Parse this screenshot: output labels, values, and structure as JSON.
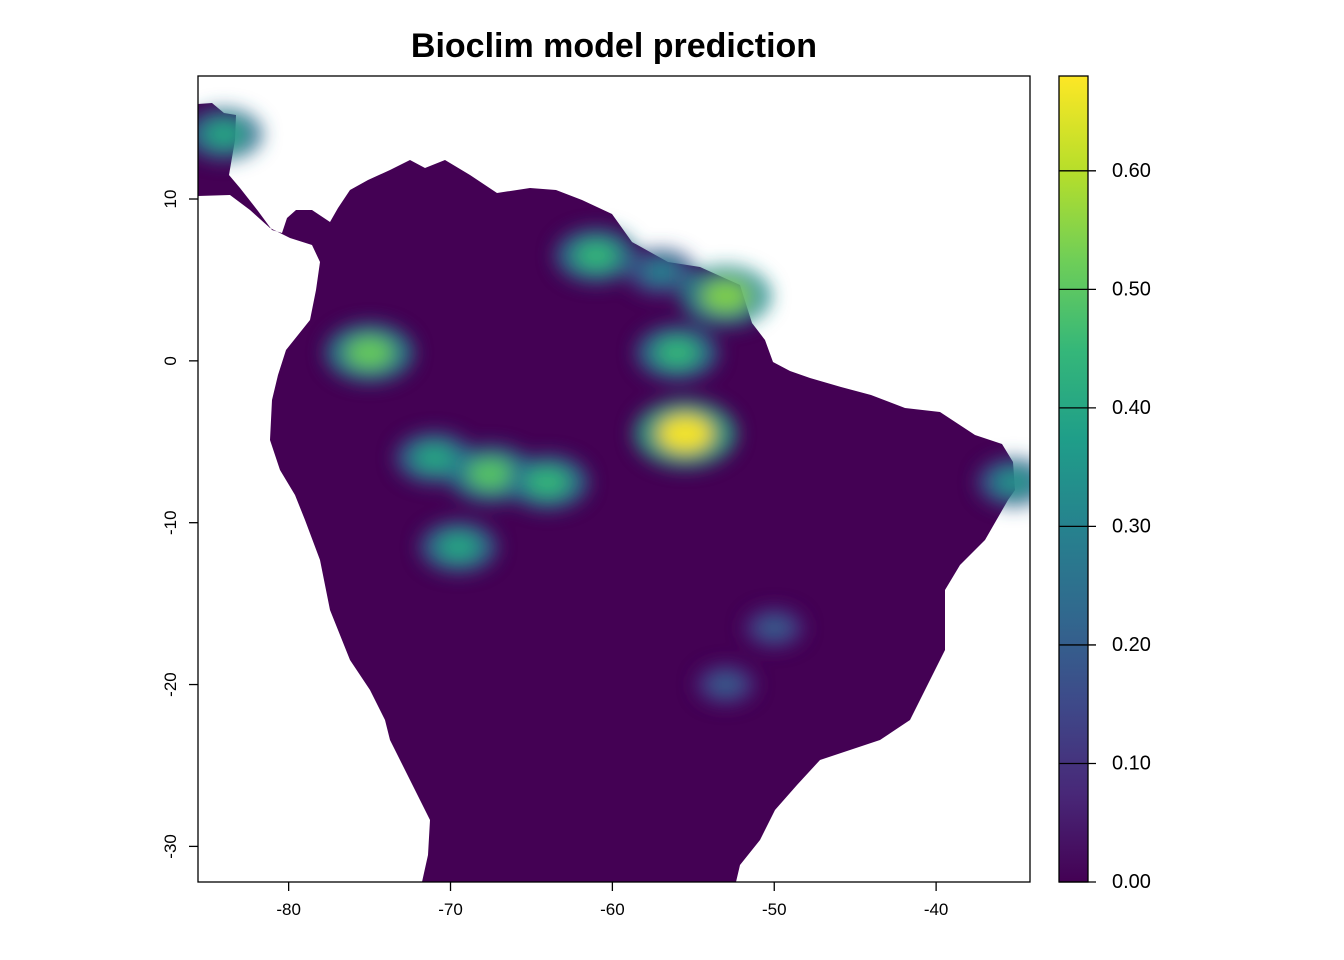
{
  "title": "Bioclim model prediction",
  "map": {
    "x_ticks": [
      {
        "value": -80,
        "label": "-80"
      },
      {
        "value": -70,
        "label": "-70"
      },
      {
        "value": -60,
        "label": "-60"
      },
      {
        "value": -50,
        "label": "-50"
      },
      {
        "value": -40,
        "label": "-40"
      }
    ],
    "y_ticks": [
      {
        "value": 10,
        "label": "10"
      },
      {
        "value": 0,
        "label": "0"
      },
      {
        "value": -10,
        "label": "-10"
      },
      {
        "value": -20,
        "label": "-20"
      },
      {
        "value": -30,
        "label": "-30"
      }
    ],
    "xlim": [
      -85.6,
      -34.2
    ],
    "ylim": [
      -32.2,
      17.6
    ],
    "land_color": "#440154",
    "hotspots": [
      {
        "lon": -75,
        "lat": 0.5,
        "value": 0.52
      },
      {
        "lon": -71,
        "lat": -6,
        "value": 0.4
      },
      {
        "lon": -67.5,
        "lat": -7,
        "value": 0.5
      },
      {
        "lon": -64,
        "lat": -7.5,
        "value": 0.45
      },
      {
        "lon": -69.5,
        "lat": -11.5,
        "value": 0.4
      },
      {
        "lon": -61,
        "lat": 6.5,
        "value": 0.45
      },
      {
        "lon": -57,
        "lat": 5.5,
        "value": 0.3
      },
      {
        "lon": -53,
        "lat": 4,
        "value": 0.55
      },
      {
        "lon": -55.5,
        "lat": -4.5,
        "value": 0.68
      },
      {
        "lon": -56,
        "lat": 0.5,
        "value": 0.45
      },
      {
        "lon": -53,
        "lat": -20,
        "value": 0.2
      },
      {
        "lon": -50,
        "lat": -16.5,
        "value": 0.2
      },
      {
        "lon": -84,
        "lat": 14,
        "value": 0.4
      },
      {
        "lon": -35.2,
        "lat": -7.5,
        "value": 0.35
      }
    ]
  },
  "colorbar": {
    "ticks": [
      {
        "value": 0.0,
        "label": "0.00"
      },
      {
        "value": 0.1,
        "label": "0.10"
      },
      {
        "value": 0.2,
        "label": "0.20"
      },
      {
        "value": 0.3,
        "label": "0.30"
      },
      {
        "value": 0.4,
        "label": "0.40"
      },
      {
        "value": 0.5,
        "label": "0.50"
      },
      {
        "value": 0.6,
        "label": "0.60"
      }
    ],
    "range": [
      0,
      0.68
    ],
    "colors": [
      "#440154",
      "#482878",
      "#3e4989",
      "#31688e",
      "#26828e",
      "#1f9e89",
      "#35b779",
      "#6ece58",
      "#b5de2b",
      "#fde725"
    ]
  }
}
